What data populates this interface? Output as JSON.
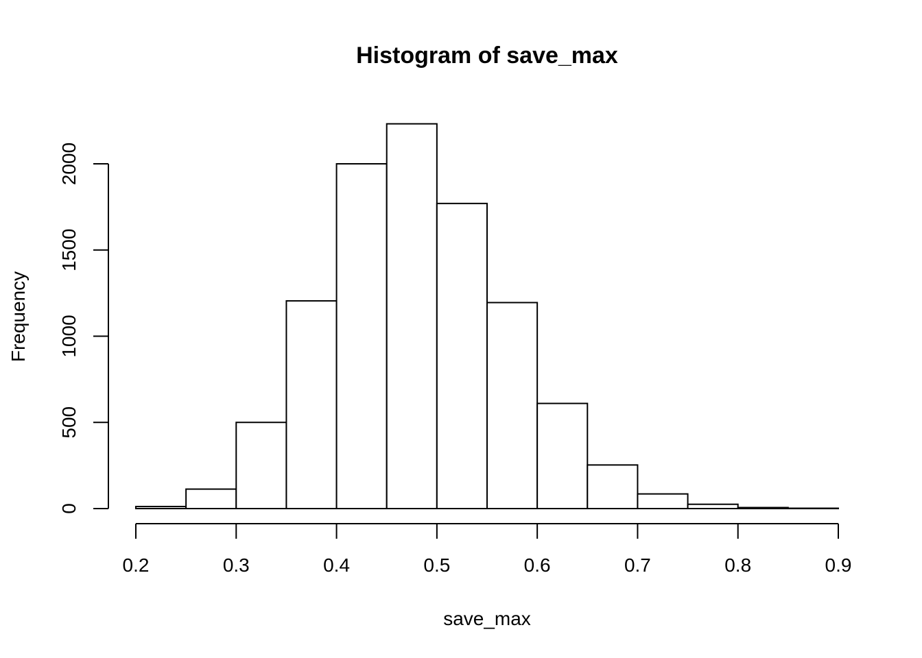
{
  "chart_data": {
    "type": "bar",
    "title": "Histogram of save_max",
    "xlabel": "save_max",
    "ylabel": "Frequency",
    "bin_edges": [
      0.2,
      0.25,
      0.3,
      0.35,
      0.4,
      0.45,
      0.5,
      0.55,
      0.6,
      0.65,
      0.7,
      0.75,
      0.8,
      0.85,
      0.9
    ],
    "values": [
      12,
      113,
      500,
      1205,
      2000,
      2232,
      1770,
      1195,
      610,
      253,
      85,
      25,
      6,
      2
    ],
    "xlim": [
      0.2,
      0.9
    ],
    "ylim": [
      0,
      2240
    ],
    "x_ticks": [
      "0.2",
      "0.3",
      "0.4",
      "0.5",
      "0.6",
      "0.7",
      "0.8",
      "0.9"
    ],
    "y_ticks": [
      "0",
      "500",
      "1000",
      "1500",
      "2000"
    ],
    "grid": false,
    "legend": "none"
  }
}
